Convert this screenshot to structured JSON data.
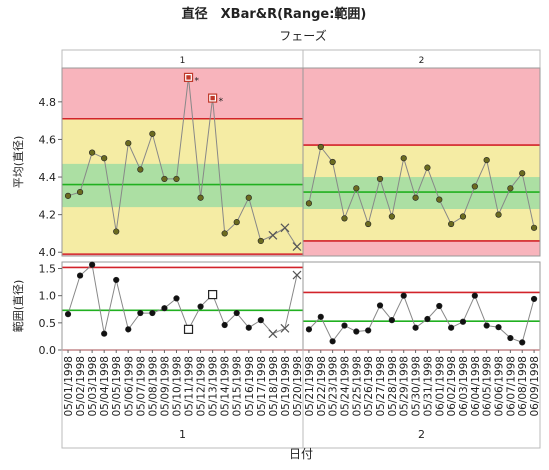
{
  "title": "直径　XBar&R(Range:範囲)",
  "chart_data": {
    "type": "control-chart",
    "title": "直径　XBar&R(Range:範囲)",
    "phase_title": "フェーズ",
    "phases": [
      "1",
      "2"
    ],
    "xlabel": "日付",
    "categories": [
      "05/01/1998",
      "05/02/1998",
      "05/03/1998",
      "05/04/1998",
      "05/05/1998",
      "05/06/1998",
      "05/07/1998",
      "05/08/1998",
      "05/09/1998",
      "05/10/1998",
      "05/11/1998",
      "05/12/1998",
      "05/13/1998",
      "05/14/1998",
      "05/15/1998",
      "05/16/1998",
      "05/17/1998",
      "05/18/1998",
      "05/19/1998",
      "05/20/1998",
      "05/21/1998",
      "05/22/1998",
      "05/23/1998",
      "05/24/1998",
      "05/25/1998",
      "05/26/1998",
      "05/27/1998",
      "05/28/1998",
      "05/29/1998",
      "05/30/1998",
      "05/31/1998",
      "06/01/1998",
      "06/02/1998",
      "06/03/1998",
      "06/04/1998",
      "06/05/1998",
      "06/06/1998",
      "06/07/1998",
      "06/08/1998",
      "06/09/1998"
    ],
    "phase_count": [
      20,
      20
    ],
    "xbar": {
      "ylabel": "平均(直径)",
      "ylim": [
        3.98,
        4.98
      ],
      "yticks": [
        4.0,
        4.2,
        4.4,
        4.6,
        4.8
      ],
      "values": [
        4.3,
        4.32,
        4.53,
        4.5,
        4.11,
        4.58,
        4.44,
        4.63,
        4.39,
        4.39,
        4.93,
        4.29,
        4.82,
        4.1,
        4.16,
        4.29,
        4.06,
        4.09,
        4.13,
        4.03,
        4.26,
        4.56,
        4.48,
        4.18,
        4.34,
        4.15,
        4.39,
        4.19,
        4.5,
        4.29,
        4.45,
        4.28,
        4.15,
        4.19,
        4.35,
        4.49,
        4.2,
        4.34,
        4.42,
        4.13
      ],
      "phase1": {
        "center": 4.36,
        "ucl": 4.71,
        "lcl": 3.99,
        "zone_a": [
          4.24,
          4.47
        ]
      },
      "phase2": {
        "center": 4.32,
        "ucl": 4.57,
        "lcl": 4.06,
        "zone_a": [
          4.23,
          4.4
        ]
      },
      "flagged_box": [
        10,
        12
      ],
      "flagged_x": [
        17,
        18,
        19
      ],
      "flag_label": "*"
    },
    "range": {
      "ylabel": "範囲(直径)",
      "ylim": [
        0,
        1.62
      ],
      "yticks": [
        0,
        0.5,
        1.0,
        1.5
      ],
      "values": [
        0.66,
        1.37,
        1.57,
        0.3,
        1.29,
        0.38,
        0.68,
        0.68,
        0.77,
        0.95,
        0.38,
        0.8,
        1.02,
        0.46,
        0.68,
        0.41,
        0.55,
        0.3,
        0.4,
        1.38,
        0.38,
        0.61,
        0.16,
        0.45,
        0.34,
        0.36,
        0.82,
        0.55,
        1.0,
        0.41,
        0.57,
        0.81,
        0.41,
        0.52,
        1.0,
        0.45,
        0.42,
        0.22,
        0.14,
        0.94
      ],
      "phase1": {
        "center": 0.73,
        "ucl": 1.52,
        "lcl": 0.0
      },
      "phase2": {
        "center": 0.53,
        "ucl": 1.06,
        "lcl": 0.0
      },
      "flagged_box": [
        10,
        12
      ],
      "flagged_x": [
        17,
        18,
        19
      ]
    },
    "colors": {
      "limit": "#d2232a",
      "center": "#20b020",
      "zone_red": "#f8b4bc",
      "zone_yellow": "#f5eca4",
      "zone_green": "#acdfa3",
      "point_fill": "#6b6b20",
      "line": "#888888"
    }
  }
}
